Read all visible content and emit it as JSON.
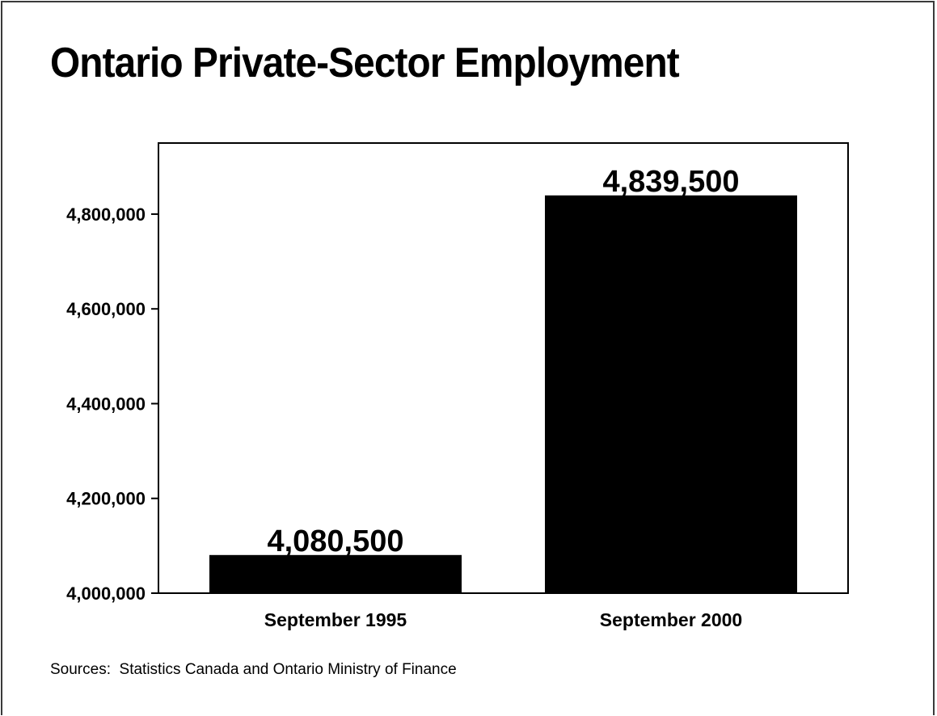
{
  "chart_data": {
    "type": "bar",
    "title": "Ontario Private-Sector Employment",
    "categories": [
      "September 1995",
      "September 2000"
    ],
    "values": [
      4080500,
      4839500
    ],
    "data_labels": [
      "4,080,500",
      "4,839,500"
    ],
    "ylim": [
      4000000,
      4950000
    ],
    "yticks": [
      4000000,
      4200000,
      4400000,
      4600000,
      4800000
    ],
    "ytick_labels": [
      "4,000,000",
      "4,200,000",
      "4,400,000",
      "4,600,000",
      "4,800,000"
    ],
    "xlabel": "",
    "ylabel": "",
    "grid": false,
    "legend": "none",
    "bar_color": "#000000"
  },
  "footer": {
    "source": "Sources:  Statistics Canada and Ontario Ministry of Finance"
  }
}
